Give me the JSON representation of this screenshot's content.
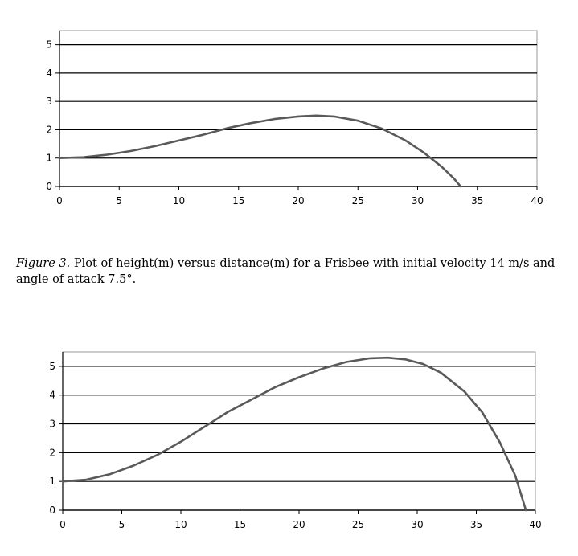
{
  "figure_caption": {
    "label": "Figure 3.",
    "text": "Plot of height(m) versus distance(m) for a Frisbee with initial velocity 14 m/s and angle of attack 7.5°."
  },
  "chart_data": [
    {
      "type": "line",
      "title": "",
      "xlabel": "",
      "ylabel": "",
      "xlim": [
        0,
        40
      ],
      "ylim": [
        0,
        5.5
      ],
      "x_ticks": [
        0,
        5,
        10,
        15,
        20,
        25,
        30,
        35,
        40
      ],
      "y_ticks": [
        0,
        1,
        2,
        3,
        4,
        5
      ],
      "grid": "horizontal",
      "legend": "none",
      "line_color": "#5a5a5a",
      "series": [
        {
          "x": [
            0,
            2,
            4,
            6,
            8,
            10,
            12,
            14,
            16,
            18,
            20,
            21.5,
            23,
            25,
            27,
            29,
            30.5,
            32,
            33,
            33.6
          ],
          "y": [
            1.0,
            1.03,
            1.12,
            1.25,
            1.42,
            1.62,
            1.82,
            2.05,
            2.23,
            2.38,
            2.47,
            2.5,
            2.47,
            2.32,
            2.04,
            1.62,
            1.2,
            0.7,
            0.3,
            0.0
          ]
        }
      ]
    },
    {
      "type": "line",
      "title": "",
      "xlabel": "",
      "ylabel": "",
      "xlim": [
        0,
        40
      ],
      "ylim": [
        0,
        5.5
      ],
      "x_ticks": [
        0,
        5,
        10,
        15,
        20,
        25,
        30,
        35,
        40
      ],
      "y_ticks": [
        0,
        1,
        2,
        3,
        4,
        5
      ],
      "grid": "horizontal",
      "legend": "none",
      "line_color": "#5a5a5a",
      "series": [
        {
          "x": [
            0,
            2,
            4,
            6,
            8,
            10,
            12,
            14,
            16,
            18,
            20,
            22,
            24,
            26,
            27.5,
            29,
            30.5,
            32,
            34,
            35.5,
            37,
            38.3,
            39.2
          ],
          "y": [
            1.0,
            1.06,
            1.25,
            1.55,
            1.92,
            2.38,
            2.9,
            3.42,
            3.85,
            4.28,
            4.62,
            4.92,
            5.15,
            5.28,
            5.3,
            5.24,
            5.08,
            4.78,
            4.12,
            3.4,
            2.35,
            1.2,
            0.0
          ]
        }
      ]
    }
  ]
}
